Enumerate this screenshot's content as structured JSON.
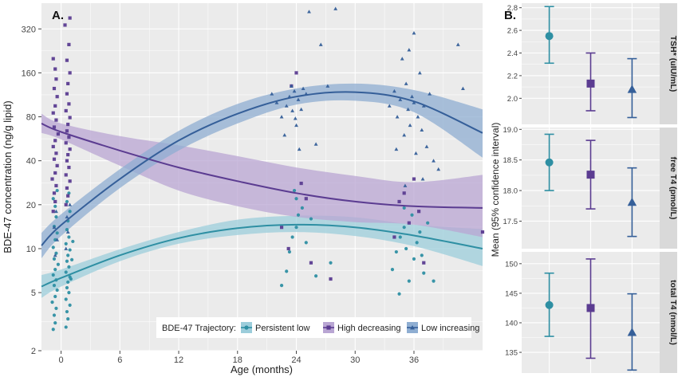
{
  "colors": {
    "panel_bg": "#ebebeb",
    "grid": "#ffffff",
    "strip_bg": "#d9d9d9",
    "persistent_low": "#2e8fa3",
    "high_decreasing": "#5b3c91",
    "low_increasing": "#355f99",
    "band_low": "#9ccddb",
    "band_high": "#b9a6d3",
    "band_inc": "#8faed2"
  },
  "panel_a": {
    "tag": "A.",
    "xlabel": "Age (months)",
    "ylabel": "BDE-47 concentration (ng/g lipid)",
    "legend_title": "BDE-47 Trajectory:",
    "legend_placement": "bottom-right"
  },
  "panel_b": {
    "tag": "B.",
    "ylabel": "Mean (95% confidence interval)"
  },
  "chart_data": [
    {
      "type": "scatter",
      "panel": "A",
      "x_scale": "linear",
      "y_scale": "log2",
      "xlim": [
        -2,
        43
      ],
      "ylim": [
        2,
        480
      ],
      "x_ticks": [
        0,
        6,
        12,
        18,
        24,
        30,
        36
      ],
      "x_tick_labels": [
        "0",
        "6",
        "12",
        "18",
        "24",
        "30",
        "36"
      ],
      "y_ticks": [
        2,
        5,
        10,
        20,
        40,
        80,
        160,
        320
      ],
      "y_tick_labels": [
        "2",
        "5",
        "10",
        "20",
        "40",
        "80",
        "160",
        "320"
      ],
      "grid": true,
      "legend_placement": "bottom-right",
      "series": [
        {
          "name": "Persistent low",
          "marker": "circle",
          "color": "#2e8fa3",
          "fit": {
            "x": [
              -2,
              0,
              6,
              12,
              18,
              24,
              30,
              36,
              43
            ],
            "y": [
              5.5,
              6.3,
              9,
              11.8,
              13.8,
              14.6,
              14,
              12.3,
              10
            ]
          },
          "band_lower": [
            4.6,
            5.5,
            8.2,
            10.8,
            12.4,
            13,
            12.2,
            10.4,
            7.6
          ],
          "band_upper": [
            6.6,
            7.2,
            9.9,
            13,
            15.8,
            16.8,
            16.4,
            14.6,
            13.6
          ],
          "points": [
            [
              -0.8,
              2.8
            ],
            [
              -0.6,
              3.1
            ],
            [
              -0.7,
              3.5
            ],
            [
              -0.5,
              3.9
            ],
            [
              -0.9,
              4.3
            ],
            [
              -0.6,
              4.7
            ],
            [
              -0.4,
              5.2
            ],
            [
              -0.7,
              5.6
            ],
            [
              -0.5,
              6.1
            ],
            [
              -0.8,
              6.6
            ],
            [
              -0.6,
              7.2
            ],
            [
              -0.3,
              7.8
            ],
            [
              -0.7,
              8.5
            ],
            [
              -0.5,
              9.3
            ],
            [
              -0.8,
              10.2
            ],
            [
              -0.6,
              11.5
            ],
            [
              -0.4,
              12.8
            ],
            [
              -0.7,
              14.2
            ],
            [
              -0.5,
              16.5
            ],
            [
              -0.6,
              19.5
            ],
            [
              -0.8,
              22
            ],
            [
              -0.4,
              25
            ],
            [
              0.5,
              2.9
            ],
            [
              0.7,
              3.3
            ],
            [
              0.6,
              3.7
            ],
            [
              0.9,
              4.1
            ],
            [
              0.5,
              4.5
            ],
            [
              0.8,
              5
            ],
            [
              0.6,
              5.4
            ],
            [
              0.7,
              5.9
            ],
            [
              0.9,
              6.4
            ],
            [
              0.5,
              6.9
            ],
            [
              0.8,
              7.5
            ],
            [
              0.6,
              8.2
            ],
            [
              0.7,
              9
            ],
            [
              0.9,
              9.8
            ],
            [
              0.5,
              10.8
            ],
            [
              0.8,
              12
            ],
            [
              0.6,
              13.5
            ],
            [
              0.7,
              15.5
            ],
            [
              0.9,
              18
            ],
            [
              0.6,
              21
            ],
            [
              0.8,
              24
            ],
            [
              1.0,
              6.2
            ],
            [
              1.1,
              8.4
            ],
            [
              1.2,
              11.2
            ],
            [
              22.5,
              5.6
            ],
            [
              23,
              7
            ],
            [
              23.3,
              9.5
            ],
            [
              23.6,
              12
            ],
            [
              24,
              14
            ],
            [
              24.2,
              17
            ],
            [
              24.6,
              19
            ],
            [
              24,
              22
            ],
            [
              25,
              11
            ],
            [
              23.8,
              25
            ],
            [
              26,
              6.5
            ],
            [
              27.5,
              8
            ],
            [
              25.5,
              16
            ],
            [
              33.8,
              7.2
            ],
            [
              34.2,
              9.5
            ],
            [
              34.6,
              12
            ],
            [
              35,
              14
            ],
            [
              35.2,
              10
            ],
            [
              35.5,
              6
            ],
            [
              35.8,
              17
            ],
            [
              36,
              8.5
            ],
            [
              36.3,
              11
            ],
            [
              36.6,
              13
            ],
            [
              37,
              6.8
            ],
            [
              37.4,
              15
            ],
            [
              38,
              6
            ],
            [
              35,
              19
            ],
            [
              34.5,
              4.9
            ],
            [
              36.8,
              9
            ]
          ]
        },
        {
          "name": "High decreasing",
          "marker": "square",
          "color": "#5b3c91",
          "fit": {
            "x": [
              -2,
              0,
              6,
              12,
              18,
              24,
              30,
              36,
              43
            ],
            "y": [
              72,
              63,
              47,
              36,
              29,
              24,
              21,
              19.5,
              19
            ]
          },
          "band_lower": [
            62,
            56,
            37,
            25,
            19.5,
            16.5,
            15.2,
            14.6,
            12
          ],
          "band_upper": [
            84,
            72,
            59,
            51,
            43,
            36,
            31.5,
            28.5,
            32
          ],
          "points": [
            [
              -0.8,
              18
            ],
            [
              -0.6,
              21
            ],
            [
              -0.7,
              24
            ],
            [
              -0.5,
              27
            ],
            [
              -0.9,
              30
            ],
            [
              -0.6,
              33
            ],
            [
              -0.4,
              37
            ],
            [
              -0.7,
              41
            ],
            [
              -0.5,
              45
            ],
            [
              -0.8,
              50
            ],
            [
              -0.6,
              55
            ],
            [
              -0.3,
              61
            ],
            [
              -0.7,
              68
            ],
            [
              -0.5,
              76
            ],
            [
              -0.8,
              85
            ],
            [
              -0.6,
              95
            ],
            [
              -0.4,
              110
            ],
            [
              -0.7,
              125
            ],
            [
              -0.5,
              145
            ],
            [
              -0.6,
              170
            ],
            [
              -0.8,
              200
            ],
            [
              0.5,
              20
            ],
            [
              0.7,
              23
            ],
            [
              0.6,
              26
            ],
            [
              0.9,
              29
            ],
            [
              0.5,
              32
            ],
            [
              0.8,
              36
            ],
            [
              0.6,
              40
            ],
            [
              0.7,
              44
            ],
            [
              0.9,
              48
            ],
            [
              0.5,
              53
            ],
            [
              0.8,
              58
            ],
            [
              0.6,
              64
            ],
            [
              0.7,
              71
            ],
            [
              0.9,
              79
            ],
            [
              0.5,
              88
            ],
            [
              0.8,
              98
            ],
            [
              0.6,
              115
            ],
            [
              0.7,
              135
            ],
            [
              0.9,
              160
            ],
            [
              0.6,
              195
            ],
            [
              0.8,
              250
            ],
            [
              0.4,
              340
            ],
            [
              0.9,
              380
            ],
            [
              24,
              160
            ],
            [
              23.5,
              130
            ],
            [
              25,
              22
            ],
            [
              24.5,
              28
            ],
            [
              22.5,
              14
            ],
            [
              23.2,
              10
            ],
            [
              25.5,
              8
            ],
            [
              27.5,
              6.2
            ],
            [
              36,
              30
            ],
            [
              35,
              24
            ],
            [
              34.5,
              21
            ],
            [
              36.5,
              18
            ],
            [
              35.5,
              15
            ],
            [
              34,
              12
            ],
            [
              37,
              8
            ],
            [
              43,
              13
            ]
          ]
        },
        {
          "name": "Low increasing",
          "marker": "triangle",
          "color": "#355f99",
          "fit": {
            "x": [
              -2,
              0,
              6,
              12,
              18,
              24,
              30,
              36,
              43
            ],
            "y": [
              10.5,
              14.5,
              30,
              55,
              84,
              110,
              118,
              102,
              62
            ]
          },
          "band_lower": [
            8.6,
            12.2,
            26,
            47,
            72,
            97,
            103,
            86,
            42
          ],
          "band_upper": [
            12.8,
            17.2,
            35,
            64,
            98,
            125,
            135,
            122,
            90
          ],
          "points": [
            [
              -0.6,
              9
            ],
            [
              -0.4,
              11.5
            ],
            [
              -0.7,
              14
            ],
            [
              -0.5,
              18
            ],
            [
              0.5,
              10
            ],
            [
              0.7,
              13
            ],
            [
              0.6,
              16.5
            ],
            [
              0.9,
              20
            ],
            [
              21.5,
              115
            ],
            [
              22,
              100
            ],
            [
              22.5,
              80
            ],
            [
              22.8,
              60
            ],
            [
              23,
              95
            ],
            [
              23.3,
              110
            ],
            [
              23.6,
              88
            ],
            [
              23.8,
              120
            ],
            [
              24,
              70
            ],
            [
              24.2,
              105
            ],
            [
              24.5,
              90
            ],
            [
              24.7,
              125
            ],
            [
              25,
              115
            ],
            [
              24.3,
              48
            ],
            [
              23.5,
              130
            ],
            [
              23.9,
              78
            ],
            [
              26,
              52
            ],
            [
              25.3,
              420
            ],
            [
              27.2,
              130
            ],
            [
              28,
              440
            ],
            [
              26.5,
              250
            ],
            [
              33.5,
              95
            ],
            [
              34,
              120
            ],
            [
              34.3,
              80
            ],
            [
              34.6,
              105
            ],
            [
              35,
              60
            ],
            [
              35.2,
              135
            ],
            [
              35.4,
              90
            ],
            [
              35.6,
              70
            ],
            [
              35.8,
              110
            ],
            [
              36,
              100
            ],
            [
              36.2,
              45
            ],
            [
              36.4,
              80
            ],
            [
              36.6,
              160
            ],
            [
              36.8,
              65
            ],
            [
              37,
              95
            ],
            [
              37.3,
              50
            ],
            [
              37.6,
              115
            ],
            [
              38,
              40
            ],
            [
              34.8,
              200
            ],
            [
              35.5,
              230
            ],
            [
              36,
              300
            ],
            [
              40.5,
              250
            ],
            [
              41,
              125
            ],
            [
              38.5,
              35
            ],
            [
              34.2,
              48
            ],
            [
              36.9,
              30
            ],
            [
              35.1,
              27
            ]
          ]
        }
      ]
    },
    {
      "type": "scatter",
      "panel": "B",
      "facets": [
        {
          "strip": "TSH* (uIU/mL)",
          "ylim": [
            1.77,
            2.84
          ],
          "y_ticks": [
            2.0,
            2.2,
            2.4,
            2.6,
            2.8
          ],
          "y_tick_labels": [
            "2.0",
            "2.2",
            "2.4",
            "2.6",
            "2.8"
          ],
          "points": [
            {
              "group": "Persistent low",
              "mean": 2.55,
              "lower": 2.31,
              "upper": 2.81
            },
            {
              "group": "High decreasing",
              "mean": 2.13,
              "lower": 1.89,
              "upper": 2.4
            },
            {
              "group": "Low increasing",
              "mean": 2.08,
              "lower": 1.83,
              "upper": 2.35
            }
          ]
        },
        {
          "strip": "free T4 (pmol/L)",
          "ylim": [
            17.05,
            19.03
          ],
          "y_ticks": [
            17.5,
            18.0,
            18.5,
            19.0
          ],
          "y_tick_labels": [
            "17.5",
            "18.0",
            "18.5",
            "19.0"
          ],
          "points": [
            {
              "group": "Persistent low",
              "mean": 18.46,
              "lower": 18.0,
              "upper": 18.92
            },
            {
              "group": "High decreasing",
              "mean": 18.26,
              "lower": 17.7,
              "upper": 18.82
            },
            {
              "group": "Low increasing",
              "mean": 17.81,
              "lower": 17.25,
              "upper": 18.37
            }
          ]
        },
        {
          "strip": "total T4 (nmol/L)",
          "ylim": [
            131.5,
            152
          ],
          "y_ticks": [
            135,
            140,
            145,
            150
          ],
          "y_tick_labels": [
            "135",
            "140",
            "145",
            "150"
          ],
          "points": [
            {
              "group": "Persistent low",
              "mean": 143,
              "lower": 137.7,
              "upper": 148.4
            },
            {
              "group": "High decreasing",
              "mean": 142.5,
              "lower": 134,
              "upper": 150.8
            },
            {
              "group": "Low increasing",
              "mean": 138.4,
              "lower": 132,
              "upper": 144.9
            }
          ]
        }
      ]
    }
  ]
}
